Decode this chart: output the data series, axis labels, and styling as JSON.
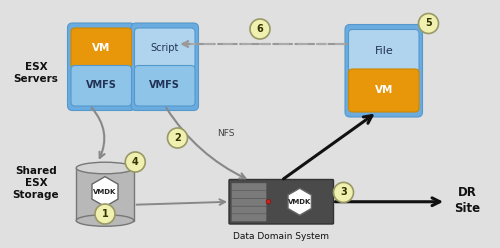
{
  "bg_color": "#e0e0e0",
  "blue_box_color": "#6aabe0",
  "blue_box_light": "#a0c8e8",
  "orange_box_color": "#e8960a",
  "text_dark": "#111111",
  "circle_fill": "#f0f0b0",
  "circle_edge": "#999966",
  "arrow_gray": "#888888",
  "arrow_black": "#111111",
  "esx_label": "ESX\nServers",
  "shared_label": "Shared\nESX\nStorage",
  "vmdk_label": "VMDK",
  "vmfs_label": "VMFS",
  "vm_label": "VM",
  "script_label": "Script",
  "file_label": "File",
  "nfs_label": "NFS",
  "dr_label": "DR\nSite",
  "dds_label": "Data Domain System",
  "figw": 5.0,
  "figh": 2.48,
  "dpi": 100
}
